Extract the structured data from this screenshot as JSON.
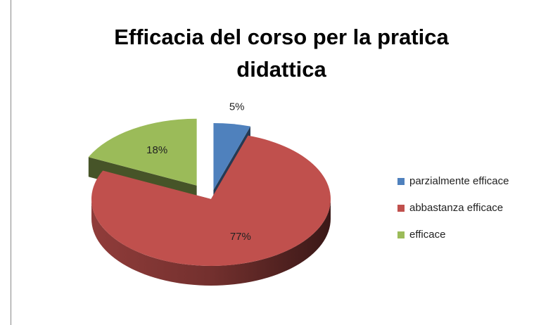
{
  "chart_data": {
    "type": "pie",
    "title": "Efficacia del corso per la pratica didattica",
    "categories": [
      "parzialmente efficace",
      "abbastanza efficace",
      "efficace"
    ],
    "values": [
      5,
      77,
      18
    ],
    "value_labels": [
      "5%",
      "77%",
      "18%"
    ],
    "colors": [
      "#4f81bd",
      "#c0504d",
      "#9bbb59"
    ],
    "legend": "right"
  }
}
